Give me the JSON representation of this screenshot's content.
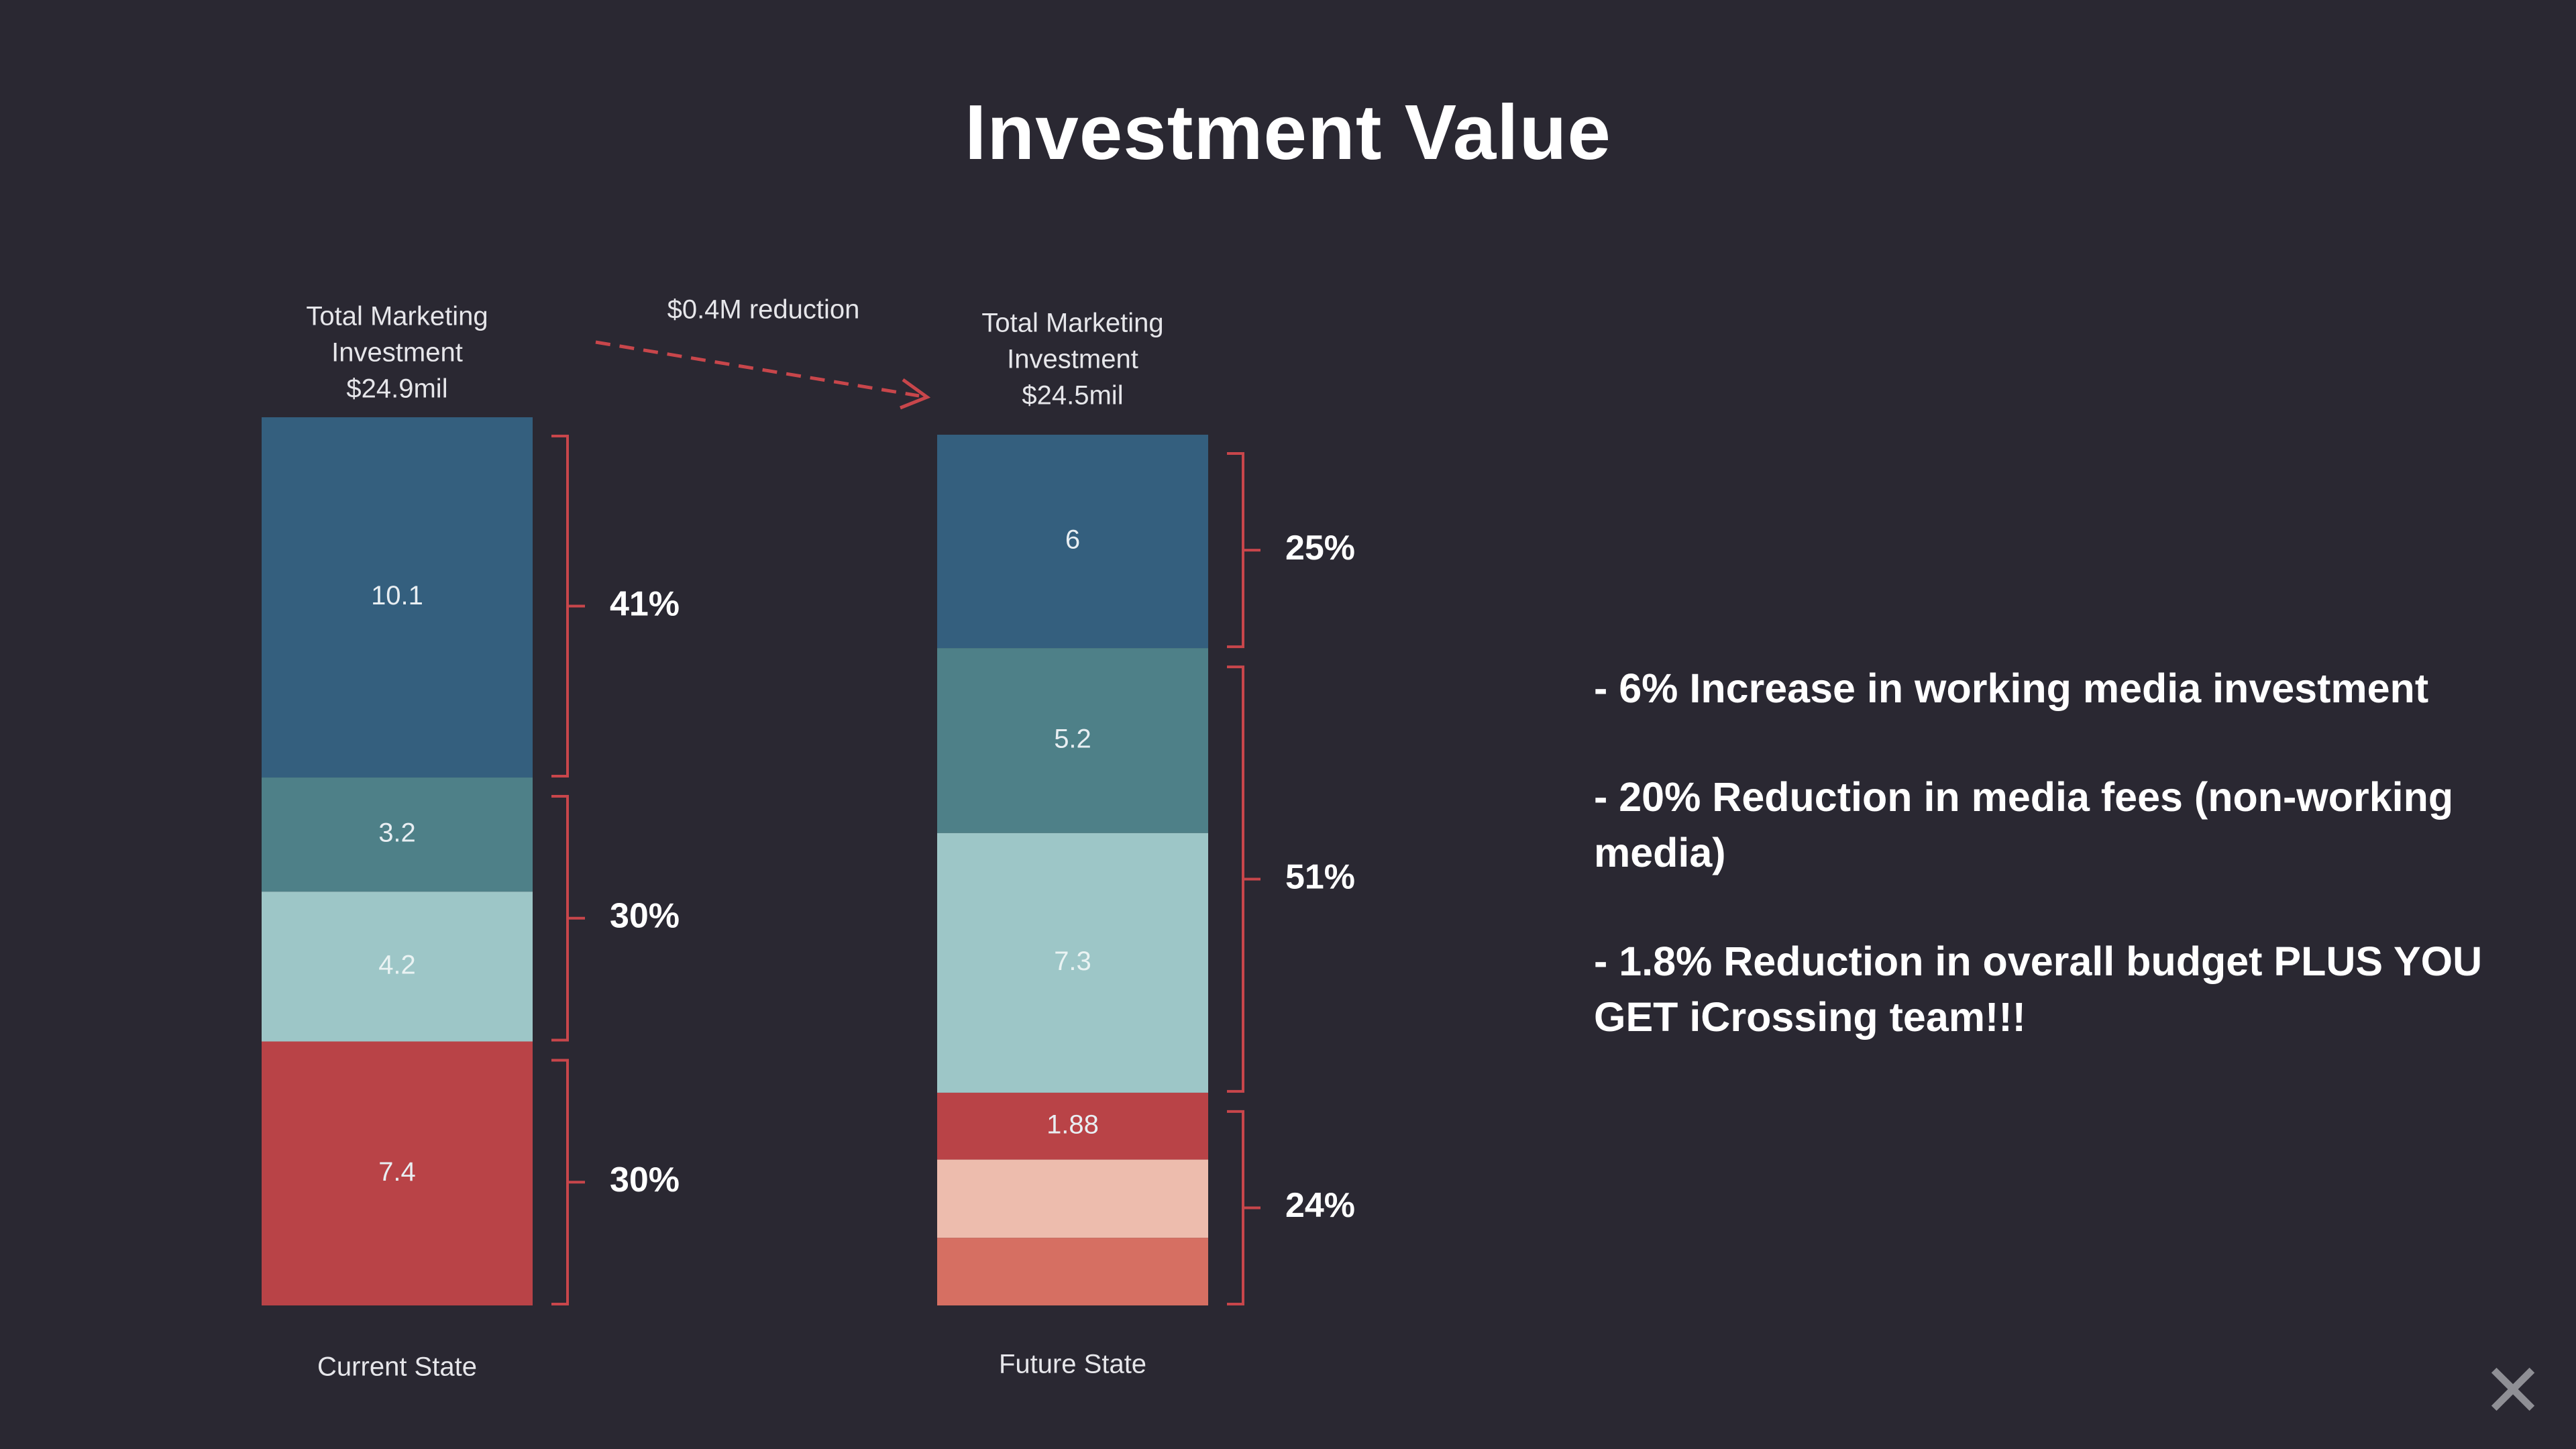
{
  "title": "Investment Value",
  "chart_data": {
    "type": "bar",
    "stacked": true,
    "categories": [
      "Current State",
      "Future State"
    ],
    "stacks": [
      {
        "category": "Current State",
        "header": [
          "Total Marketing",
          "Investment",
          "$24.9mil"
        ],
        "segments": [
          {
            "value": 10.1,
            "label": "10.1",
            "color": "#345f7e"
          },
          {
            "value": 3.2,
            "label": "3.2",
            "color": "#4e8088"
          },
          {
            "value": 4.2,
            "label": "4.2",
            "color": "#9dc6c7"
          },
          {
            "value": 7.4,
            "label": "7.4",
            "color": "#b94347"
          }
        ],
        "groups": [
          {
            "label": "41%",
            "from": 0,
            "to": 0
          },
          {
            "label": "30%",
            "from": 1,
            "to": 2
          },
          {
            "label": "30%",
            "from": 3,
            "to": 3
          }
        ]
      },
      {
        "category": "Future State",
        "header": [
          "Total Marketing",
          "Investment",
          "$24.5mil"
        ],
        "segments": [
          {
            "value": 6,
            "label": "6",
            "color": "#345f7e"
          },
          {
            "value": 5.2,
            "label": "5.2",
            "color": "#4e8088"
          },
          {
            "value": 7.3,
            "label": "7.3",
            "color": "#9dc6c7"
          },
          {
            "value": 1.88,
            "label": "1.88",
            "color": "#b94347"
          },
          {
            "value": 2.2,
            "label": "",
            "color": "#edbcad"
          },
          {
            "value": 1.9,
            "label": "",
            "color": "#d66f62"
          }
        ],
        "groups": [
          {
            "label": "25%",
            "from": 0,
            "to": 0
          },
          {
            "label": "51%",
            "from": 1,
            "to": 2
          },
          {
            "label": "24%",
            "from": 3,
            "to": 5
          }
        ]
      }
    ],
    "annotation": "$0.4M reduction",
    "accent_color": "#c8464b"
  },
  "bullets": [
    "- 6% Increase in working media investment",
    "- 20% Reduction in media fees (non-working media)",
    "- 1.8% Reduction in overall budget PLUS YOU GET iCrossing team!!!"
  ],
  "close_icon": "close-x-icon"
}
